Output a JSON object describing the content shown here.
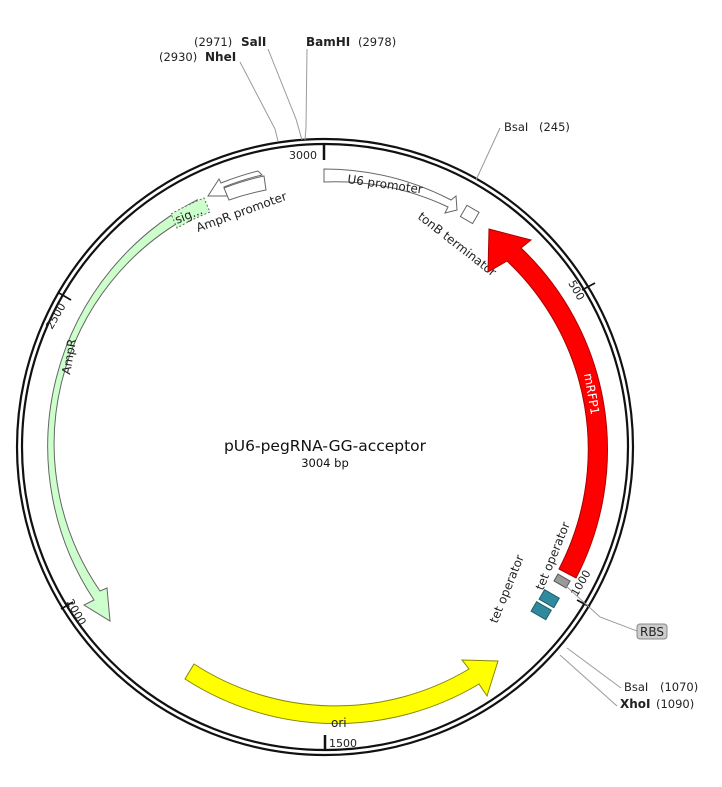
{
  "plasmid": {
    "name": "pU6-pegRNA-GG-acceptor",
    "size_label": "3004 bp"
  },
  "ticks": [
    {
      "label": "3000"
    },
    {
      "label": "500"
    },
    {
      "label": "1000"
    },
    {
      "label": "1500"
    },
    {
      "label": "2000"
    },
    {
      "label": "2500"
    }
  ],
  "enzymes": [
    {
      "name": "SalI",
      "pos": "(2971)"
    },
    {
      "name": "NheI",
      "pos": "(2930)"
    },
    {
      "name": "BamHI",
      "pos": "(2978)"
    },
    {
      "name": "BsaI",
      "pos": "(245)"
    },
    {
      "name": "BsaI",
      "pos": "(1070)"
    },
    {
      "name": "XhoI",
      "pos": "(1090)"
    }
  ],
  "features": {
    "u6_promoter": {
      "label": "U6 promoter",
      "color": "#ffffff"
    },
    "tonb_terminator": {
      "label": "tonB terminator",
      "color": "#ffffff"
    },
    "mrfp1": {
      "label": "mRFP1",
      "color": "#ff0000"
    },
    "rbs": {
      "label": "RBS",
      "color": "#9a9a9a"
    },
    "tet_operator_1": {
      "label": "tet operator",
      "color": "#2f8a9e"
    },
    "tet_operator_2": {
      "label": "tet operator",
      "color": "#2f8a9e"
    },
    "ori": {
      "label": "ori",
      "color": "#ffff00"
    },
    "ampr": {
      "label": "AmpR",
      "color": "#ccffcc"
    },
    "ampr_promoter": {
      "label": "AmpR promoter",
      "color": "#ffffff"
    },
    "sig": {
      "label": "sig...",
      "color": "#ccffcc"
    }
  }
}
